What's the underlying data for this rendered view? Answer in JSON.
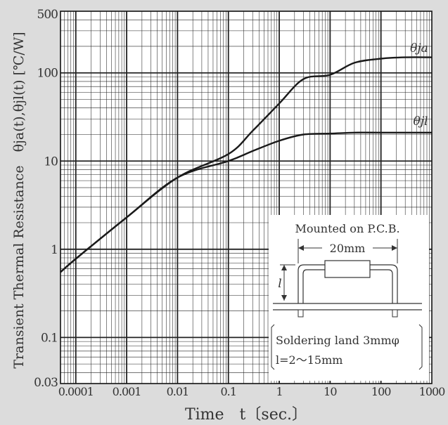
{
  "chart_data": {
    "type": "line",
    "x_scale": "log",
    "y_scale": "log",
    "xlim": [
      5e-05,
      1000
    ],
    "ylim": [
      0.03,
      500
    ],
    "xlabel": "Time　t〔sec.〕",
    "ylabel": "Transient Thermal Resistance　θja(t),θjl(t) [℃/W]",
    "x_ticks": [
      {
        "value": 0.0001,
        "label": "0.0001"
      },
      {
        "value": 0.001,
        "label": "0.001"
      },
      {
        "value": 0.01,
        "label": "0.01"
      },
      {
        "value": 0.1,
        "label": "0.1"
      },
      {
        "value": 1,
        "label": "1"
      },
      {
        "value": 10,
        "label": "10"
      },
      {
        "value": 100,
        "label": "100"
      },
      {
        "value": 1000,
        "label": "1000"
      }
    ],
    "y_ticks": [
      {
        "value": 0.03,
        "label": "0.03"
      },
      {
        "value": 0.1,
        "label": "0.1"
      },
      {
        "value": 1,
        "label": "1"
      },
      {
        "value": 10,
        "label": "10"
      },
      {
        "value": 100,
        "label": "100"
      },
      {
        "value": 500,
        "label": "500"
      }
    ],
    "grid": true,
    "series": [
      {
        "name": "θja",
        "x": [
          5e-05,
          0.0001,
          0.001,
          0.01,
          0.1,
          0.3,
          1,
          3,
          10,
          30,
          100,
          300,
          1000
        ],
        "y": [
          0.55,
          0.78,
          2.3,
          6.5,
          12,
          22,
          45,
          85,
          95,
          130,
          145,
          150,
          150
        ]
      },
      {
        "name": "θjl",
        "x": [
          5e-05,
          0.0001,
          0.001,
          0.01,
          0.1,
          0.3,
          1,
          3,
          10,
          30,
          100,
          300,
          1000
        ],
        "y": [
          0.55,
          0.78,
          2.3,
          6.5,
          10,
          13,
          17,
          20,
          20.5,
          21,
          21,
          21,
          21
        ]
      }
    ],
    "inset": {
      "title": "Mounted on P.C.B.",
      "dimension": "20mm",
      "l_symbol": "l",
      "note_line1": "Soldering land 3mmφ",
      "note_line2": "l=2～15mm"
    }
  }
}
